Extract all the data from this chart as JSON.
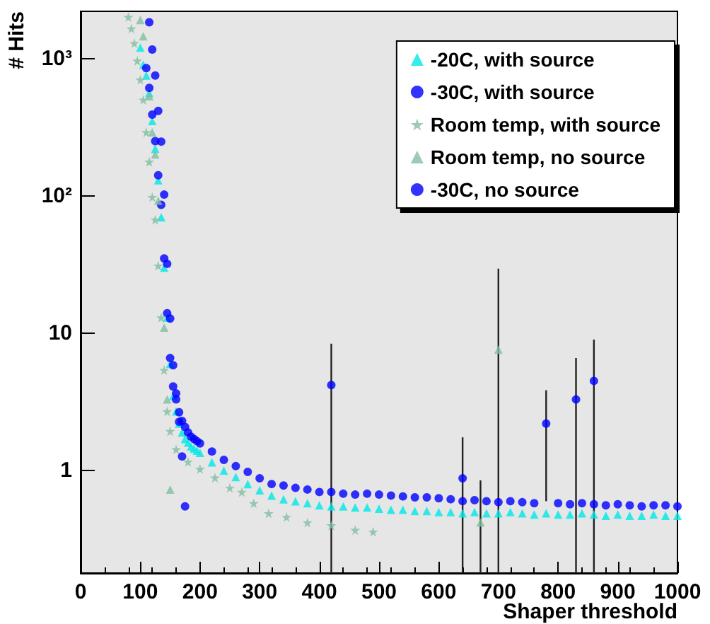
{
  "chart_data": {
    "type": "scatter",
    "xlabel": "Shaper threshold",
    "ylabel": "# Hits",
    "xlim": [
      0,
      1000
    ],
    "xticks": [
      0,
      100,
      200,
      300,
      400,
      500,
      600,
      700,
      800,
      900,
      1000
    ],
    "ylim": [
      0.18,
      2200
    ],
    "yticks": [
      1,
      10,
      {
        "value": 100,
        "label": "10²"
      },
      {
        "value": 1000,
        "label": "10³"
      }
    ],
    "log": "y",
    "legend": "top right",
    "series": [
      {
        "name": "-20C, with source",
        "color": "#00e8e8",
        "marker": "triangle",
        "x": [
          100,
          105,
          110,
          115,
          120,
          125,
          130,
          135,
          140,
          145,
          150,
          155,
          160,
          165,
          170,
          175,
          180,
          185,
          190,
          195,
          200,
          220,
          240,
          260,
          280,
          300,
          320,
          340,
          360,
          380,
          400,
          420,
          440,
          460,
          480,
          500,
          520,
          540,
          560,
          580,
          600,
          620,
          640,
          660,
          680,
          700,
          720,
          740,
          760,
          780,
          800,
          820,
          840,
          860,
          880,
          900,
          920,
          940,
          960,
          980,
          1000
        ],
        "values": [
          1200,
          900,
          750,
          560,
          350,
          220,
          130,
          70,
          30,
          13,
          6,
          3.5,
          2.7,
          2.2,
          1.9,
          1.7,
          1.6,
          1.5,
          1.45,
          1.4,
          1.35,
          1.15,
          1.0,
          0.9,
          0.8,
          0.72,
          0.66,
          0.62,
          0.6,
          0.58,
          0.56,
          0.55,
          0.55,
          0.54,
          0.54,
          0.53,
          0.52,
          0.52,
          0.51,
          0.51,
          0.5,
          0.5,
          0.49,
          0.5,
          0.49,
          0.49,
          0.5,
          0.49,
          0.48,
          0.49,
          0.48,
          0.48,
          0.49,
          0.48,
          0.47,
          0.48,
          0.47,
          0.47,
          0.48,
          0.47,
          0.47
        ]
      },
      {
        "name": "-30C, with source",
        "color": "#0000ff",
        "marker": "circle",
        "x": [
          110,
          115,
          120,
          125,
          130,
          135,
          140,
          145,
          150,
          155,
          160,
          165,
          170,
          175,
          180,
          185,
          190,
          195,
          200,
          220,
          240,
          260,
          280,
          300,
          320,
          340,
          360,
          380,
          400,
          420,
          440,
          460,
          480,
          500,
          520,
          540,
          560,
          580,
          600,
          620,
          640,
          660,
          680,
          700,
          720,
          740,
          760,
          780,
          800,
          820,
          840,
          860,
          880,
          900,
          920,
          940,
          960,
          980,
          1000
        ],
        "values": [
          850,
          610,
          390,
          250,
          141,
          86,
          35,
          14,
          6.6,
          4.1,
          3.3,
          2.66,
          2.3,
          2.08,
          1.9,
          1.77,
          1.7,
          1.64,
          1.58,
          1.38,
          1.2,
          1.08,
          0.98,
          0.88,
          0.8,
          0.78,
          0.75,
          0.73,
          0.7,
          0.7,
          0.68,
          0.67,
          0.68,
          0.67,
          0.66,
          0.65,
          0.64,
          0.64,
          0.63,
          0.62,
          0.6,
          0.61,
          0.6,
          0.59,
          0.6,
          0.59,
          0.58,
          2.2,
          0.58,
          0.57,
          0.58,
          0.57,
          0.56,
          0.57,
          0.56,
          0.55,
          0.56,
          0.56,
          0.55
        ],
        "errors": [
          null,
          null,
          null,
          null,
          null,
          null,
          null,
          null,
          null,
          null,
          null,
          null,
          null,
          null,
          null,
          null,
          null,
          null,
          null,
          null,
          null,
          null,
          null,
          null,
          null,
          null,
          null,
          null,
          null,
          null,
          null,
          null,
          null,
          null,
          null,
          null,
          null,
          null,
          null,
          null,
          null,
          null,
          null,
          null,
          null,
          null,
          null,
          [
            0.6,
            3.85
          ],
          null,
          null,
          null,
          null,
          null,
          null,
          null,
          null,
          null,
          null,
          null
        ]
      },
      {
        "name": "Room temp, with source",
        "color": "#7fbf9f",
        "marker": "star",
        "x": [
          80,
          85,
          90,
          95,
          100,
          105,
          110,
          115,
          120,
          125,
          130,
          135,
          140,
          145,
          150,
          160,
          180,
          200,
          225,
          250,
          270,
          290,
          315,
          345,
          380,
          420,
          460,
          490
        ],
        "values": [
          2000,
          1650,
          1290,
          960,
          700,
          500,
          290,
          177,
          98,
          67,
          31,
          13,
          5.4,
          2.7,
          1.94,
          1.43,
          1.16,
          1.03,
          0.89,
          0.75,
          0.7,
          0.58,
          0.49,
          0.46,
          0.42,
          0.4,
          0.37,
          0.36
        ]
      },
      {
        "name": "Room temp, no source",
        "color": "#7fbf9f",
        "marker": "triangle",
        "x": [
          100,
          105,
          115,
          120,
          125,
          130,
          140,
          145,
          150,
          670,
          700
        ],
        "values": [
          1900,
          1450,
          530,
          290,
          200,
          92,
          11,
          3.3,
          0.73,
          0.42,
          7.6
        ],
        "errors": [
          null,
          null,
          null,
          null,
          null,
          null,
          null,
          null,
          null,
          [
            0.18,
            0.85
          ],
          [
            0.18,
            29.5
          ]
        ]
      },
      {
        "name": "-30C, no source",
        "color": "#0000ff",
        "marker": "circle",
        "x": [
          115,
          120,
          125,
          130,
          135,
          140,
          145,
          150,
          155,
          160,
          165,
          170,
          175,
          420,
          640,
          830,
          860
        ],
        "values": [
          1830,
          1160,
          750,
          415,
          248,
          102,
          32,
          12.8,
          5.85,
          3.65,
          2.27,
          1.27,
          0.55,
          4.2,
          0.88,
          3.3,
          4.5
        ],
        "errors": [
          null,
          null,
          null,
          null,
          null,
          null,
          null,
          null,
          null,
          null,
          null,
          null,
          null,
          [
            0.18,
            8.4
          ],
          [
            0.18,
            1.75
          ],
          [
            0.18,
            6.6
          ],
          [
            0.18,
            9.0
          ]
        ]
      }
    ]
  }
}
